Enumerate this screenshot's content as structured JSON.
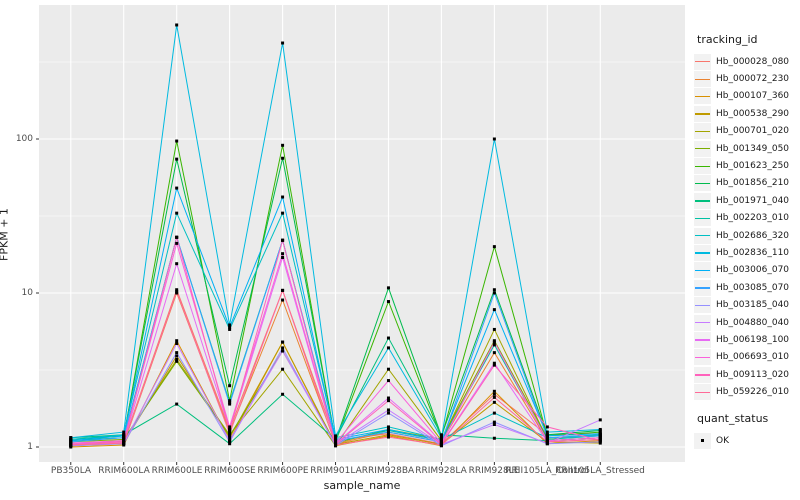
{
  "chart_data": {
    "type": "line",
    "title": "",
    "xlabel": "sample_name",
    "ylabel": "FPKM + 1",
    "y_scale": "log10",
    "y_ticks": [
      1,
      10,
      100
    ],
    "y_tick_labels": [
      "1",
      "10",
      "100"
    ],
    "y_minor_ticks": [
      3.1623,
      31.623,
      316.23
    ],
    "ylim": [
      0.8,
      740
    ],
    "grid": true,
    "panel_bg": "#EBEBEB",
    "grid_color": "#FFFFFF",
    "point_shape": "filled-square",
    "point_color": "#000000",
    "legend_position": "right",
    "categories": [
      "PB350LA",
      "RRIM600LA",
      "RRIM600LE",
      "RRIM600SE",
      "RRIM600PE",
      "RRIM901LA",
      "RRIM928BA",
      "RRIM928LA",
      "RRIM928LE",
      "RRII105LA_Control",
      "RRII105LA_Stressed"
    ],
    "series": [
      {
        "name": "Hb_000028_080",
        "color": "#F8766D",
        "values": [
          1.05,
          1.08,
          10.5,
          1.3,
          10.4,
          1.1,
          1.22,
          1.05,
          2.2,
          1.2,
          1.22
        ]
      },
      {
        "name": "Hb_000072_230",
        "color": "#EA8331",
        "values": [
          1.02,
          1.05,
          10.0,
          1.25,
          9.0,
          1.05,
          1.25,
          1.08,
          4.1,
          1.1,
          1.15
        ]
      },
      {
        "name": "Hb_000107_360",
        "color": "#D89000",
        "values": [
          1.0,
          1.03,
          4.9,
          1.1,
          4.8,
          1.02,
          1.18,
          1.02,
          2.3,
          1.05,
          1.1
        ]
      },
      {
        "name": "Hb_000538_290",
        "color": "#C09B00",
        "values": [
          1.02,
          1.06,
          3.9,
          1.15,
          4.8,
          1.04,
          1.2,
          1.04,
          1.95,
          1.08,
          1.06
        ]
      },
      {
        "name": "Hb_000701_020",
        "color": "#A3A500",
        "values": [
          1.05,
          1.1,
          3.7,
          1.2,
          3.2,
          1.02,
          3.2,
          1.1,
          5.8,
          1.12,
          1.2
        ]
      },
      {
        "name": "Hb_001349_050",
        "color": "#7CAE00",
        "values": [
          1.08,
          1.12,
          3.6,
          1.18,
          4.2,
          1.06,
          1.3,
          1.12,
          4.9,
          1.15,
          1.18
        ]
      },
      {
        "name": "Hb_001623_250",
        "color": "#39B600",
        "values": [
          1.1,
          1.15,
          97.0,
          2.0,
          91.0,
          1.08,
          8.8,
          1.15,
          20.0,
          1.18,
          1.25
        ]
      },
      {
        "name": "Hb_001856_210",
        "color": "#00BB4E",
        "values": [
          1.12,
          1.18,
          74.0,
          2.5,
          75.0,
          1.1,
          10.8,
          1.18,
          10.5,
          1.2,
          1.28
        ]
      },
      {
        "name": "Hb_001971_040",
        "color": "#00BF7D",
        "values": [
          1.15,
          1.2,
          1.9,
          1.05,
          2.2,
          1.12,
          5.1,
          1.2,
          1.14,
          1.1,
          1.15
        ]
      },
      {
        "name": "Hb_002203_010",
        "color": "#00C1A3",
        "values": [
          1.1,
          1.15,
          23.0,
          1.95,
          22.0,
          1.08,
          1.28,
          1.1,
          4.6,
          1.12,
          1.18
        ]
      },
      {
        "name": "Hb_002686_320",
        "color": "#00BFC4",
        "values": [
          1.12,
          1.2,
          33.0,
          5.8,
          33.0,
          1.15,
          1.35,
          1.12,
          1.66,
          1.15,
          1.2
        ]
      },
      {
        "name": "Hb_002836_110",
        "color": "#00BAE0",
        "values": [
          1.15,
          1.25,
          550.0,
          6.2,
          420.0,
          1.18,
          4.4,
          1.15,
          100.0,
          1.25,
          1.3
        ]
      },
      {
        "name": "Hb_003006_070",
        "color": "#00B0F6",
        "values": [
          1.1,
          1.18,
          48.0,
          6.0,
          42.0,
          1.12,
          1.3,
          1.1,
          7.8,
          1.18,
          1.22
        ]
      },
      {
        "name": "Hb_003085_070",
        "color": "#35A2FF",
        "values": [
          1.08,
          1.15,
          23.0,
          1.9,
          22.0,
          1.1,
          1.25,
          1.08,
          10.0,
          1.15,
          1.18
        ]
      },
      {
        "name": "Hb_003185_040",
        "color": "#9590FF",
        "values": [
          1.02,
          1.05,
          4.1,
          1.08,
          4.4,
          1.02,
          1.66,
          1.02,
          1.45,
          1.05,
          1.08
        ]
      },
      {
        "name": "Hb_004880_040",
        "color": "#C77CFF",
        "values": [
          1.03,
          1.06,
          4.7,
          1.1,
          4.2,
          1.04,
          1.74,
          1.04,
          1.4,
          1.06,
          1.5
        ]
      },
      {
        "name": "Hb_006198_100",
        "color": "#E76BF3",
        "values": [
          1.05,
          1.08,
          15.5,
          1.3,
          17.0,
          1.05,
          2.08,
          1.05,
          3.5,
          1.08,
          1.12
        ]
      },
      {
        "name": "Hb_006693_010",
        "color": "#FA62DB",
        "values": [
          1.06,
          1.1,
          21.0,
          1.35,
          18.0,
          1.06,
          2.7,
          1.06,
          4.8,
          1.1,
          1.15
        ]
      },
      {
        "name": "Hb_009113_020",
        "color": "#FF62BC",
        "values": [
          1.04,
          1.08,
          23.0,
          1.28,
          22.0,
          1.04,
          2.0,
          1.04,
          3.4,
          1.35,
          1.1
        ]
      },
      {
        "name": "Hb_059226_010",
        "color": "#FF6A98",
        "values": [
          1.03,
          1.06,
          10.2,
          1.22,
          10.4,
          1.03,
          1.16,
          1.03,
          2.1,
          1.08,
          1.12
        ]
      }
    ]
  },
  "legend": {
    "tracking_title": "tracking_id",
    "quant_title": "quant_status",
    "quant_items": [
      {
        "label": "OK"
      }
    ]
  }
}
